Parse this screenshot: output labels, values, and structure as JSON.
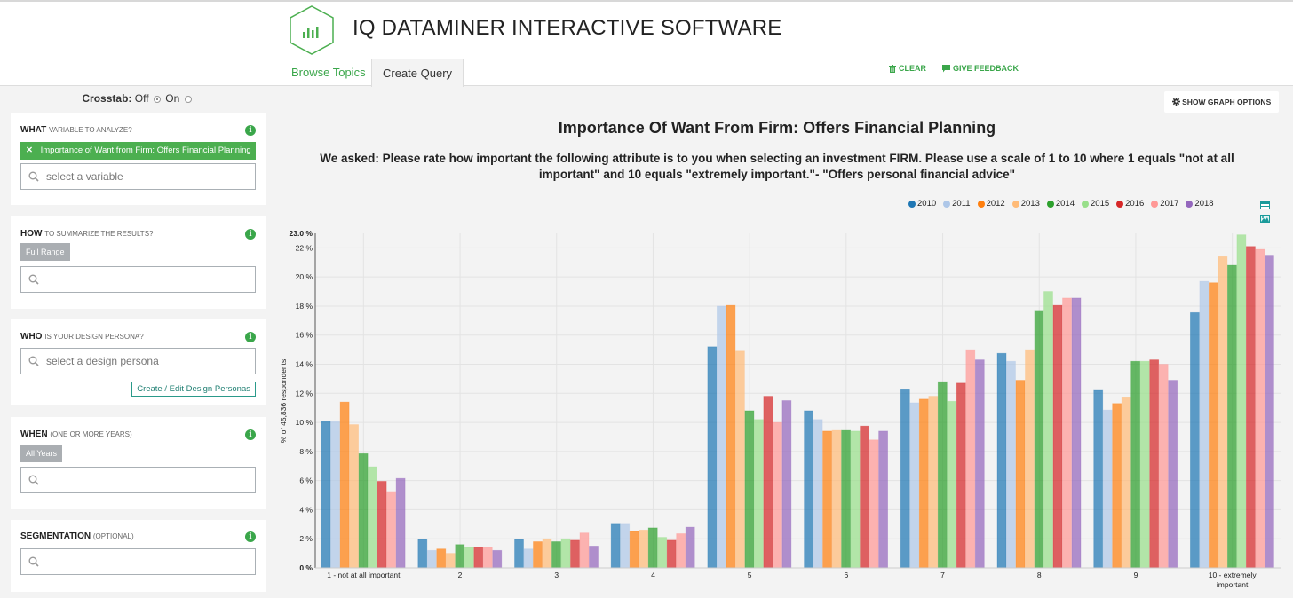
{
  "header": {
    "app_title": "IQ DATAMINER INTERACTIVE SOFTWARE",
    "tabs": [
      {
        "label": "Browse Topics",
        "active": true
      },
      {
        "label": "Create Query",
        "active": false
      }
    ],
    "actions": {
      "clear": "CLEAR",
      "feedback": "GIVE FEEDBACK"
    }
  },
  "sidebar": {
    "crosstab": {
      "label": "Crosstab:",
      "off": "Off",
      "on": "On",
      "selected": "Off"
    },
    "what": {
      "title": "WHAT",
      "subtitle": "VARIABLE TO ANALYZE?",
      "chip": "Importance of Want from Firm: Offers Financial Planning",
      "placeholder": "select a variable"
    },
    "how": {
      "title": "HOW",
      "subtitle": "TO SUMMARIZE THE RESULTS?",
      "chip": "Full Range",
      "placeholder": ""
    },
    "who": {
      "title": "WHO",
      "subtitle": "IS YOUR DESIGN PERSONA?",
      "placeholder": "select a design persona",
      "button": "Create / Edit Design Personas"
    },
    "when": {
      "title": "WHEN",
      "subtitle": "(ONE OR MORE YEARS)",
      "chip": "All Years",
      "placeholder": ""
    },
    "segmentation": {
      "title": "SEGMENTATION",
      "subtitle": "(OPTIONAL)",
      "placeholder": ""
    }
  },
  "main": {
    "graph_options": "SHOW GRAPH OPTIONS"
  },
  "chart_data": {
    "type": "bar",
    "title": "Importance Of Want From Firm: Offers Financial Planning",
    "subtitle": "We asked: Please rate how important the following attribute is to you when selecting an investment FIRM. Please use a scale of 1 to 10 where 1 equals \"not at all important\" and 10 equals \"extremely important.\"- \"Offers personal financial advice\"",
    "xlabel": "",
    "ylabel": "% of 45,836 respondents",
    "ylim": [
      0,
      23
    ],
    "ymax_label": "23.0 %",
    "yticks": [
      0,
      2,
      4,
      6,
      8,
      10,
      12,
      14,
      16,
      18,
      20,
      22
    ],
    "grid": true,
    "legend_position": "top-right",
    "categories": [
      "1 - not at all important",
      "2",
      "3",
      "4",
      "5",
      "6",
      "7",
      "8",
      "9",
      "10 - extremely important"
    ],
    "series": [
      {
        "name": "2010",
        "color": "#1f77b4",
        "values": [
          10.1,
          1.95,
          1.95,
          3.0,
          15.2,
          10.8,
          12.25,
          14.75,
          12.2,
          17.55
        ]
      },
      {
        "name": "2011",
        "color": "#aec7e8",
        "values": [
          10.05,
          1.2,
          1.3,
          3.0,
          18.0,
          10.2,
          11.35,
          14.2,
          10.85,
          19.7
        ]
      },
      {
        "name": "2012",
        "color": "#ff7f0e",
        "values": [
          11.4,
          1.3,
          1.8,
          2.5,
          18.05,
          9.4,
          11.6,
          12.9,
          11.3,
          19.6
        ]
      },
      {
        "name": "2013",
        "color": "#ffbb78",
        "values": [
          9.85,
          1.0,
          2.0,
          2.6,
          14.9,
          9.45,
          11.8,
          15.0,
          11.7,
          21.4
        ]
      },
      {
        "name": "2014",
        "color": "#2ca02c",
        "values": [
          7.85,
          1.6,
          1.8,
          2.75,
          10.8,
          9.45,
          12.8,
          17.7,
          14.2,
          20.8
        ]
      },
      {
        "name": "2015",
        "color": "#98df8a",
        "values": [
          6.95,
          1.4,
          2.0,
          2.1,
          10.2,
          9.4,
          11.45,
          19.0,
          14.2,
          22.9
        ]
      },
      {
        "name": "2016",
        "color": "#d62728",
        "values": [
          5.95,
          1.4,
          1.9,
          1.9,
          11.8,
          9.75,
          12.7,
          18.05,
          14.3,
          22.1
        ]
      },
      {
        "name": "2017",
        "color": "#ff9896",
        "values": [
          5.25,
          1.4,
          2.4,
          2.35,
          10.0,
          8.8,
          15.0,
          18.55,
          14.0,
          21.9
        ]
      },
      {
        "name": "2018",
        "color": "#9467bd",
        "values": [
          6.15,
          1.2,
          1.5,
          2.8,
          11.5,
          9.4,
          14.3,
          18.55,
          12.9,
          21.5
        ]
      }
    ]
  }
}
